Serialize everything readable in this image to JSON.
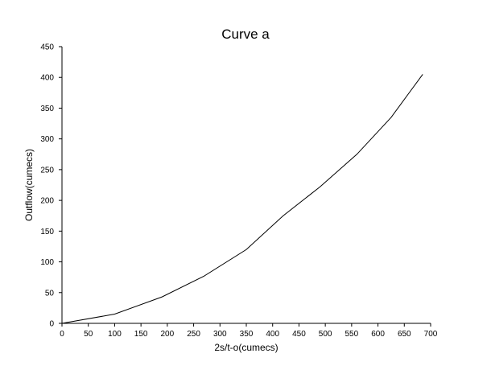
{
  "chart_data": {
    "type": "line",
    "title": "Curve a",
    "xlabel": "2s/t-o(cumecs)",
    "ylabel": "Outflow(cumecs)",
    "xlim": [
      0,
      700
    ],
    "ylim": [
      0,
      450
    ],
    "xticks": [
      0,
      50,
      100,
      150,
      200,
      250,
      300,
      350,
      400,
      450,
      500,
      550,
      600,
      650,
      700
    ],
    "yticks": [
      0,
      50,
      100,
      150,
      200,
      250,
      300,
      350,
      400,
      450
    ],
    "grid": false,
    "legend": "none",
    "line_color": "#000000",
    "series": [
      {
        "x": [
          0,
          100,
          190,
          270,
          350,
          420,
          490,
          560,
          625,
          685
        ],
        "y": [
          0,
          15,
          43,
          77,
          120,
          175,
          222,
          275,
          335,
          405
        ]
      }
    ]
  }
}
